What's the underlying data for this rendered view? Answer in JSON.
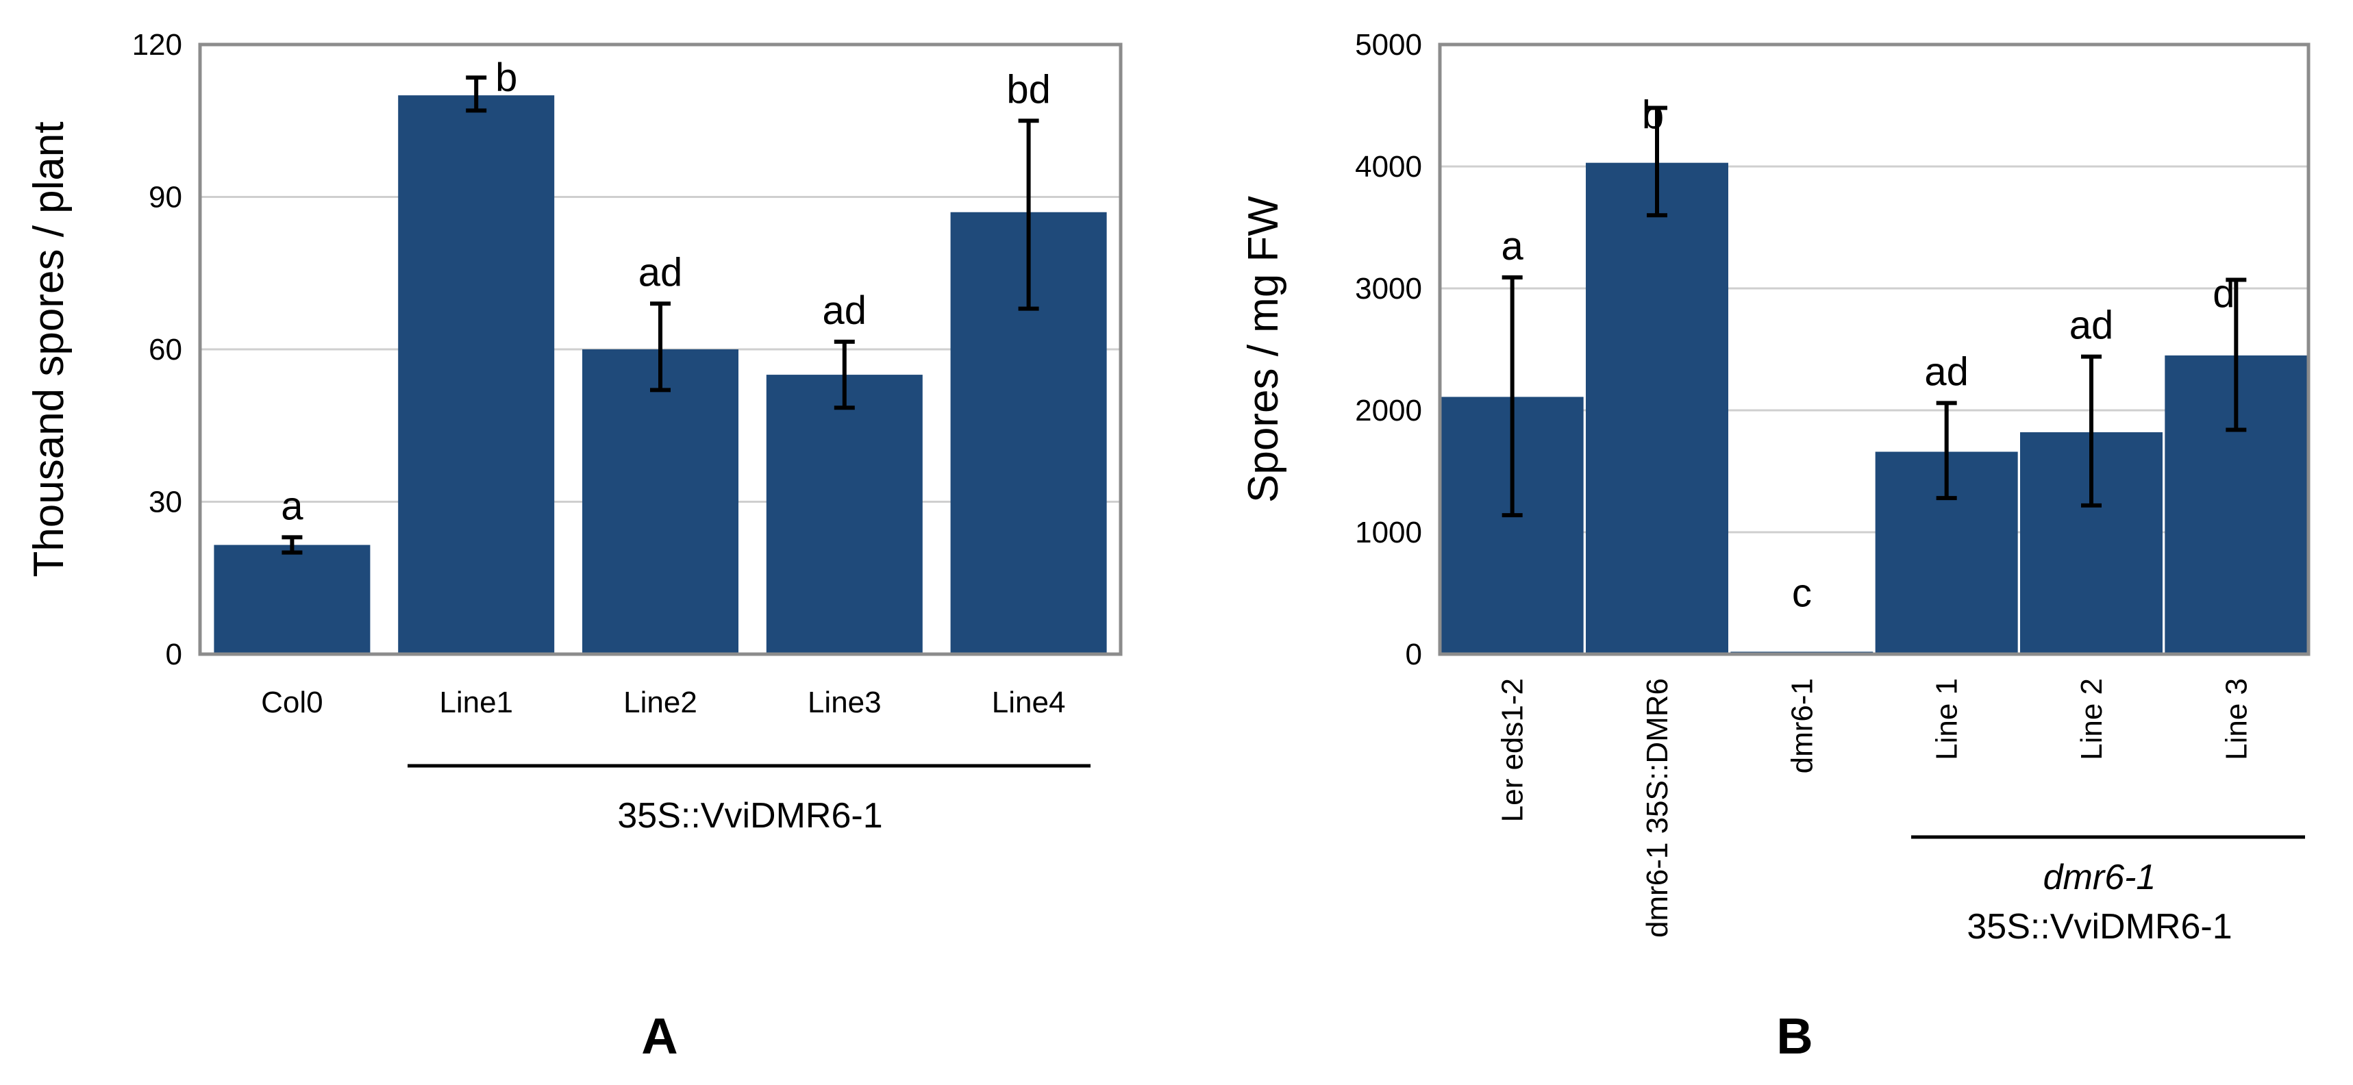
{
  "colors": {
    "bar": "#1f4a7a",
    "grid": "#cfcfcf",
    "frame": "#8c8c8c",
    "error": "#000000"
  },
  "chart_data": [
    {
      "type": "bar",
      "panel_label": "A",
      "title": "",
      "xlabel": "",
      "ylabel": "Thousand spores / plant",
      "ylim": [
        0,
        120
      ],
      "yticks": [
        "0",
        "30",
        "60",
        "90",
        "120"
      ],
      "ytick_values": [
        0,
        30,
        60,
        90,
        120
      ],
      "categories": [
        "Col0",
        "Line1",
        "Line2",
        "Line3",
        "Line4"
      ],
      "values": [
        21.5,
        110,
        60,
        55,
        87
      ],
      "error_low": [
        20,
        107,
        52,
        48.5,
        68
      ],
      "error_high": [
        23,
        113.5,
        69,
        61.5,
        105
      ],
      "significance": [
        "a",
        "b",
        "ad",
        "ad",
        "bd"
      ],
      "grid": true,
      "group_label": {
        "lines": [
          "35S::VviDMR6-1"
        ],
        "covers": [
          "Line1",
          "Line2",
          "Line3",
          "Line4"
        ]
      }
    },
    {
      "type": "bar",
      "panel_label": "B",
      "title": "",
      "xlabel": "",
      "ylabel": "Spores / mg FW",
      "ylim": [
        0,
        5000
      ],
      "yticks": [
        "0",
        "1000",
        "2000",
        "3000",
        "4000",
        "5000"
      ],
      "ytick_values": [
        0,
        1000,
        2000,
        3000,
        4000,
        5000
      ],
      "categories": [
        "Ler eds1-2",
        "dmr6-1 35S::DMR6",
        "dmr6-1",
        "Line 1",
        "Line 2",
        "Line 3"
      ],
      "values": [
        2110,
        4030,
        20,
        1660,
        1820,
        2450
      ],
      "error_low": [
        1140,
        3600,
        20,
        1280,
        1220,
        1840
      ],
      "error_high": [
        3090,
        4480,
        20,
        2060,
        2440,
        3070
      ],
      "significance": [
        "a",
        "b",
        "c",
        "ad",
        "ad",
        "d"
      ],
      "grid": true,
      "group_label": {
        "lines": [
          "dmr6-1",
          "35S::VviDMR6-1"
        ],
        "covers": [
          "Line 1",
          "Line 2",
          "Line 3"
        ]
      }
    }
  ]
}
